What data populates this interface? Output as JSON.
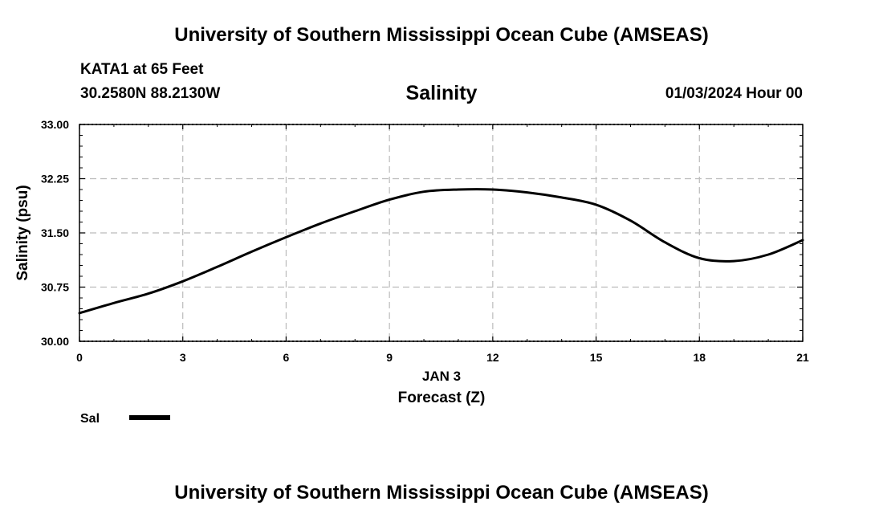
{
  "header": {
    "title": "University of Southern Mississippi Ocean Cube (AMSEAS)",
    "station": "KATA1 at 65 Feet",
    "coords": "30.2580N  88.2130W",
    "plot_title": "Salinity",
    "date": "01/03/2024 Hour 00"
  },
  "footer": {
    "title": "University of Southern Mississippi Ocean Cube (AMSEAS)"
  },
  "legend": {
    "label": "Sal"
  },
  "colors": {
    "line": "#000000",
    "grid": "#bbbbbb"
  },
  "chart_data": {
    "type": "line",
    "title": "Salinity",
    "xlabel": "Forecast (Z)",
    "xlabel_date": "JAN 3",
    "ylabel": "Salinity (psu)",
    "xlim": [
      0,
      21
    ],
    "ylim": [
      30.0,
      33.0
    ],
    "x_ticks": [
      0,
      3,
      6,
      9,
      12,
      15,
      18,
      21
    ],
    "y_ticks": [
      "30.00",
      "30.75",
      "31.50",
      "32.25",
      "33.00"
    ],
    "grid": true,
    "legend_position": "bottom-left",
    "series": [
      {
        "name": "Sal",
        "x": [
          0,
          1,
          2,
          3,
          4,
          5,
          6,
          7,
          8,
          9,
          10,
          11,
          12,
          13,
          14,
          15,
          16,
          17,
          18,
          19,
          20,
          21
        ],
        "values": [
          30.39,
          30.53,
          30.66,
          30.83,
          31.03,
          31.24,
          31.44,
          31.63,
          31.8,
          31.96,
          32.07,
          32.1,
          32.1,
          32.06,
          31.99,
          31.89,
          31.67,
          31.37,
          31.15,
          31.11,
          31.2,
          31.4
        ]
      }
    ]
  }
}
